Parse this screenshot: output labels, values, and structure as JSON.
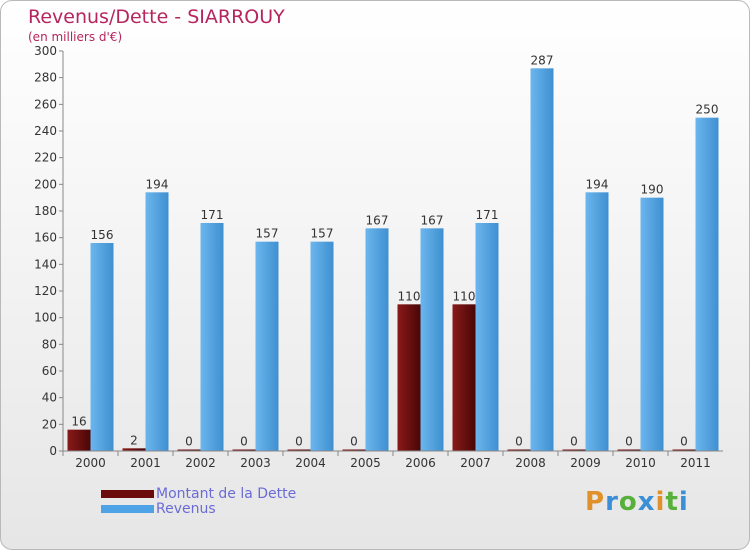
{
  "header": {
    "title": "Revenus/Dette - SIARROUY",
    "subtitle": "(en milliers d'€)"
  },
  "chart_data": {
    "type": "bar",
    "title": "Revenus/Dette - SIARROUY",
    "ylabel": "(en milliers d'€)",
    "xlabel": "",
    "ylim": [
      0,
      300
    ],
    "ytick_step": 20,
    "grid": false,
    "legend_position": "bottom-left",
    "categories": [
      "2000",
      "2001",
      "2002",
      "2003",
      "2004",
      "2005",
      "2006",
      "2007",
      "2008",
      "2009",
      "2010",
      "2011"
    ],
    "series": [
      {
        "name": "Montant de la Dette",
        "color": "#6b0b0b",
        "values": [
          16,
          2,
          0,
          0,
          0,
          0,
          110,
          110,
          0,
          0,
          0,
          0
        ]
      },
      {
        "name": "Revenus",
        "color": "#4da3e6",
        "values": [
          156,
          194,
          171,
          157,
          157,
          167,
          167,
          171,
          287,
          194,
          190,
          250
        ]
      }
    ]
  },
  "legend": {
    "items": [
      {
        "label": "Montant de la Dette",
        "color": "#6b0b0b"
      },
      {
        "label": "Revenus",
        "color": "#4da3e6"
      }
    ]
  },
  "logo": {
    "letters": [
      "P",
      "r",
      "o",
      "x",
      "i",
      "t",
      "i"
    ],
    "colors": [
      "#e0912a",
      "#3a8fd6",
      "#57b03a",
      "#3a8fd6",
      "#e0912a",
      "#57b03a",
      "#3a8fd6"
    ]
  }
}
